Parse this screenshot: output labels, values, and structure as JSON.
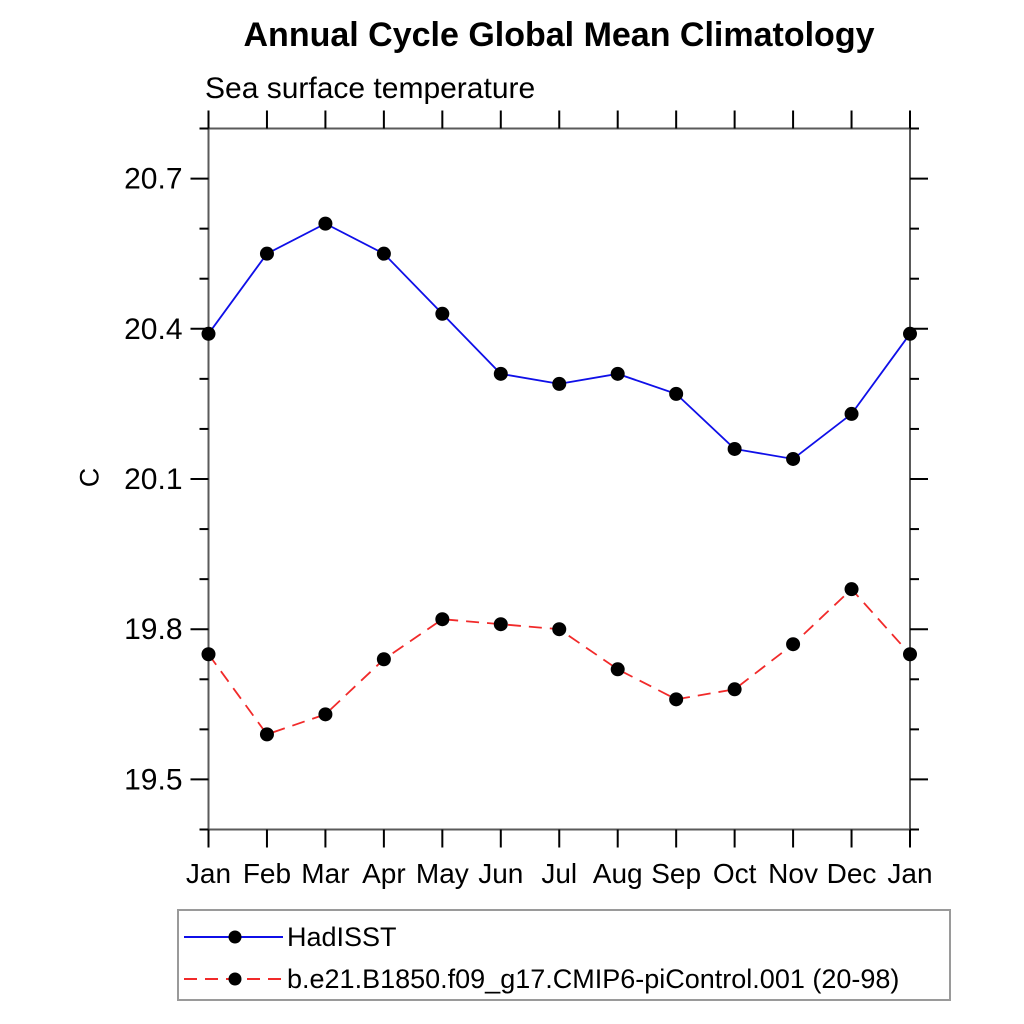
{
  "page": {
    "background_color": "#ffffff",
    "text_color": "#000000"
  },
  "chart_data": {
    "type": "line",
    "title": "Annual Cycle Global Mean Climatology",
    "subtitle": "Sea surface temperature",
    "xlabel": "",
    "ylabel": "C",
    "categories": [
      "Jan",
      "Feb",
      "Mar",
      "Apr",
      "May",
      "Jun",
      "Jul",
      "Aug",
      "Sep",
      "Oct",
      "Nov",
      "Dec",
      "Jan"
    ],
    "ylim": [
      19.4,
      20.8
    ],
    "y_major_ticks": [
      19.5,
      19.8,
      20.1,
      20.4,
      20.7
    ],
    "y_tick_labels": [
      "19.5",
      "19.8",
      "20.1",
      "20.4",
      "20.7"
    ],
    "y_minor_step": 0.1,
    "grid": false,
    "ticks_direction": "outward",
    "legend_position": "bottom-left-boxed",
    "axis_color": "#5a5a5a",
    "tick_color": "#000000",
    "series": [
      {
        "name": "HadISST",
        "color": "#0f0fe8",
        "line_style": "solid",
        "marker": "filled-circle",
        "marker_color": "#000000",
        "values": [
          20.39,
          20.55,
          20.61,
          20.55,
          20.43,
          20.31,
          20.29,
          20.31,
          20.27,
          20.16,
          20.14,
          20.23,
          20.39
        ]
      },
      {
        "name": "b.e21.B1850.f09_g17.CMIP6-piControl.001 (20-98)",
        "color": "#f12a2a",
        "line_style": "dashed",
        "marker": "filled-circle",
        "marker_color": "#000000",
        "values": [
          19.75,
          19.59,
          19.63,
          19.74,
          19.82,
          19.81,
          19.8,
          19.72,
          19.66,
          19.68,
          19.77,
          19.88,
          19.75
        ]
      }
    ]
  }
}
